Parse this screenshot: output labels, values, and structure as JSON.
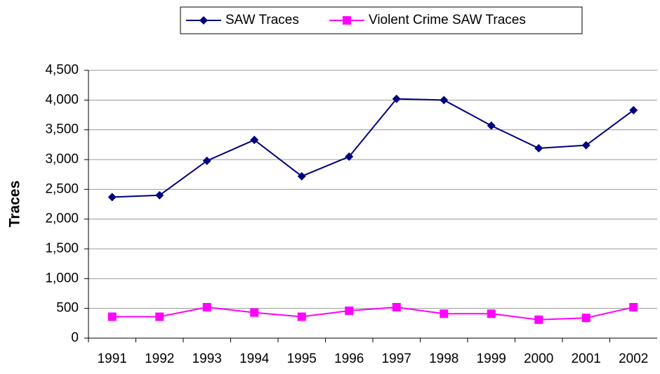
{
  "chart_data": {
    "type": "line",
    "y_label": "Traces",
    "categories": [
      "1991",
      "1992",
      "1993",
      "1994",
      "1995",
      "1996",
      "1997",
      "1998",
      "1999",
      "2000",
      "2001",
      "2002"
    ],
    "series": [
      {
        "name": "SAW Traces",
        "color": "#000080",
        "marker": "diamond",
        "values": [
          2370,
          2400,
          2980,
          3330,
          2720,
          3050,
          4020,
          4000,
          3570,
          3190,
          3240,
          3830
        ]
      },
      {
        "name": "Violent Crime SAW Traces",
        "color": "#ff00ff",
        "marker": "square",
        "values": [
          360,
          360,
          520,
          430,
          360,
          460,
          520,
          410,
          410,
          310,
          340,
          520
        ]
      }
    ],
    "ylim": [
      0,
      4500
    ],
    "yticks": [
      0,
      500,
      {
        "value": 1000,
        "label": "1,000"
      },
      {
        "value": 1500,
        "label": "1,500"
      },
      {
        "value": 2000,
        "label": "2,000"
      },
      {
        "value": 2500,
        "label": "2,500"
      },
      {
        "value": 3000,
        "label": "3,000"
      },
      {
        "value": 3500,
        "label": "3,500"
      },
      {
        "value": 4000,
        "label": "4,000"
      },
      {
        "value": 4500,
        "label": "4,500"
      }
    ],
    "grid": true,
    "legend": "top"
  }
}
